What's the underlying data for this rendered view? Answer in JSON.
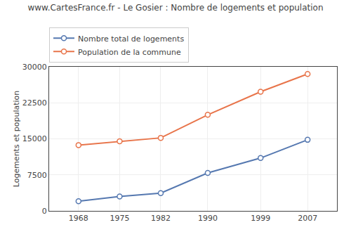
{
  "chart_data": {
    "type": "line",
    "title": "www.CartesFrance.fr - Le Gosier : Nombre de logements et population",
    "ylabel": "Logements et population",
    "x": [
      1968,
      1975,
      1982,
      1990,
      1999,
      2007
    ],
    "series": [
      {
        "name": "Nombre total de logements",
        "color": "#5578b0",
        "values": [
          2000,
          3000,
          3700,
          7900,
          11000,
          14800
        ]
      },
      {
        "name": "Population de la commune",
        "color": "#e8744a",
        "values": [
          13700,
          14500,
          15200,
          20000,
          24800,
          28500
        ]
      }
    ],
    "marker": "circle",
    "xlim": [
      1963,
      2012
    ],
    "xticks": [
      1968,
      1975,
      1982,
      1990,
      1999,
      2007
    ],
    "ylim": [
      0,
      30000
    ],
    "yticks": [
      0,
      7500,
      15000,
      22500,
      30000
    ],
    "grid": true,
    "legend": "upper left"
  }
}
